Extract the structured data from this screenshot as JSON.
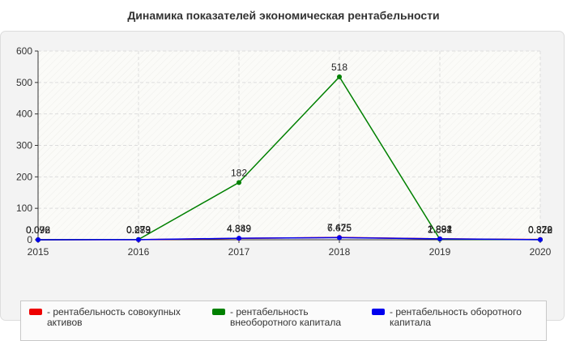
{
  "header": {
    "title": "Динамика показателей экономическая рентабельности"
  },
  "colors": {
    "panel_bg": "#f3f3f3",
    "plot_bg": "#fbfbf8",
    "grid": "#dddddd",
    "axis": "#333333"
  },
  "legend": {
    "items": [
      {
        "label": "- рентабельность совокупных активов",
        "color": "#ee0000"
      },
      {
        "label": "- рентабельность внеоборотного капитала",
        "color": "#008000"
      },
      {
        "label": "- рентабельность оборотного капитала",
        "color": "#0000ee"
      }
    ]
  },
  "chart_data": {
    "type": "line",
    "categories": [
      "2015",
      "2016",
      "2017",
      "2018",
      "2019",
      "2020"
    ],
    "title": "Динамика показателей экономическая рентабельности",
    "xlabel": "",
    "ylabel": "",
    "ylim": [
      0,
      600
    ],
    "yticks": [
      0,
      100,
      200,
      300,
      400,
      500,
      600
    ],
    "grid": true,
    "legend_position": "bottom",
    "series": [
      {
        "name": "- рентабельность совокупных активов",
        "color": "#ee0000",
        "values": [
          0.076,
          0.273,
          4.349,
          7.475,
          2.884,
          0.878
        ],
        "labels": [
          "0.076",
          "0.273",
          "4.349",
          "7.475",
          "2.884",
          "0.878"
        ]
      },
      {
        "name": "- рентабельность внеоборотного капитала",
        "color": "#008000",
        "values": [
          0.096,
          0.879,
          182,
          518,
          1.881,
          0.322
        ],
        "labels": [
          "0.096",
          "0.879",
          "182",
          "518",
          "1.881",
          "0.322"
        ]
      },
      {
        "name": "- рентабельность оборотного капитала",
        "color": "#0000ee",
        "values": [
          0.092,
          0.289,
          4.889,
          6.625,
          2.892,
          0.329
        ],
        "labels": [
          "0.092",
          "0.289",
          "4.889",
          "6.625",
          "2.892",
          "0.329"
        ]
      }
    ]
  }
}
